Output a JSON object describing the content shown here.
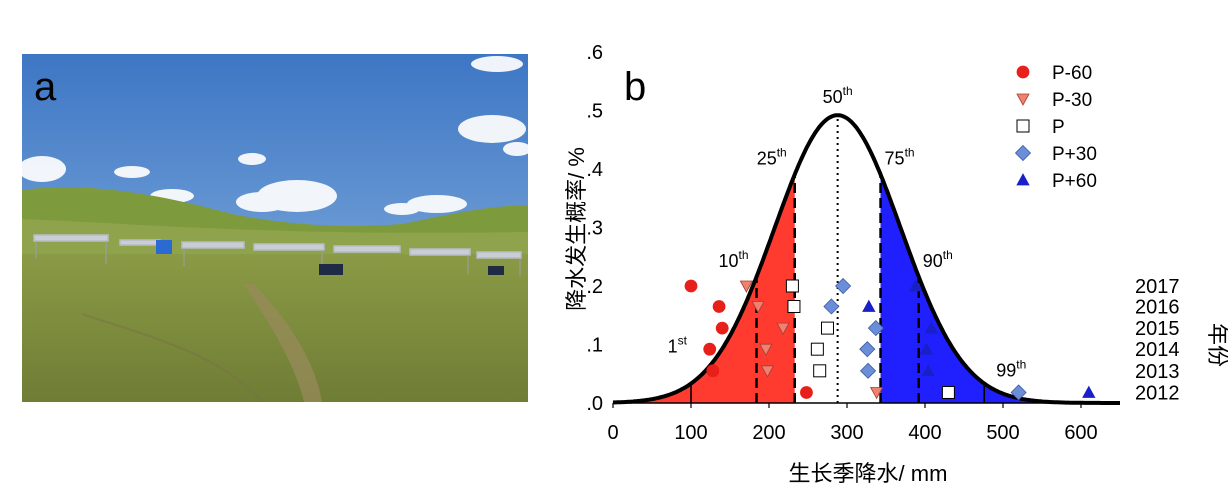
{
  "panel_a": {
    "label": "a"
  },
  "panel_b": {
    "label": "b"
  },
  "chart_data": {
    "type": "scatter",
    "xlabel": "生长季降水/ mm",
    "ylabel": "降水发生概率/ %",
    "y2label": "年份",
    "xlim": [
      0,
      650
    ],
    "ylim": [
      0,
      0.6
    ],
    "xticks": [
      0,
      100,
      200,
      300,
      400,
      500,
      600
    ],
    "yticks": [
      0.0,
      0.1,
      0.2,
      0.3,
      0.4,
      0.5,
      0.6
    ],
    "ytick_labels": [
      ".0",
      ".1",
      ".2",
      ".3",
      ".4",
      ".5",
      ".6"
    ],
    "y2_categories": [
      "2017",
      "2016",
      "2015",
      "2014",
      "2013",
      "2012"
    ],
    "y2_values": [
      0.2,
      0.165,
      0.128,
      0.092,
      0.055,
      0.018
    ],
    "distribution": {
      "kind": "normal",
      "mean": 288,
      "sd": 81
    },
    "shading": [
      {
        "from": 0,
        "to": 233,
        "color": "#ff3b30"
      },
      {
        "from": 343,
        "to": 650,
        "color": "#2020ff"
      }
    ],
    "percentiles": [
      {
        "p": "1",
        "suffix": "st",
        "x": 100,
        "style": "solid"
      },
      {
        "p": "10",
        "suffix": "th",
        "x": 184,
        "style": "dashed"
      },
      {
        "p": "25",
        "suffix": "th",
        "x": 233,
        "style": "dashed"
      },
      {
        "p": "50",
        "suffix": "th",
        "x": 288,
        "style": "dotted"
      },
      {
        "p": "75",
        "suffix": "th",
        "x": 343,
        "style": "dashed"
      },
      {
        "p": "90",
        "suffix": "th",
        "x": 392,
        "style": "dashed"
      },
      {
        "p": "99",
        "suffix": "th",
        "x": 476,
        "style": "solid"
      }
    ],
    "series": [
      {
        "name": "P-60",
        "marker": "circle",
        "color": "#e8201a",
        "points": [
          [
            100,
            0.2
          ],
          [
            136,
            0.165
          ],
          [
            140,
            0.128
          ],
          [
            124,
            0.092
          ],
          [
            128,
            0.055
          ],
          [
            248,
            0.018
          ]
        ]
      },
      {
        "name": "P-30",
        "marker": "triangle-down",
        "color": "#f08070",
        "points": [
          [
            171,
            0.2
          ],
          [
            186,
            0.165
          ],
          [
            218,
            0.128
          ],
          [
            196,
            0.092
          ],
          [
            198,
            0.055
          ],
          [
            338,
            0.018
          ]
        ]
      },
      {
        "name": "P",
        "marker": "square",
        "color": "#ffffff",
        "points": [
          [
            230,
            0.2
          ],
          [
            232,
            0.165
          ],
          [
            275,
            0.128
          ],
          [
            262,
            0.092
          ],
          [
            265,
            0.055
          ],
          [
            430,
            0.018
          ]
        ]
      },
      {
        "name": "P+30",
        "marker": "diamond",
        "color": "#6a8fd8",
        "points": [
          [
            295,
            0.2
          ],
          [
            280,
            0.165
          ],
          [
            337,
            0.128
          ],
          [
            326,
            0.092
          ],
          [
            327,
            0.055
          ],
          [
            520,
            0.018
          ]
        ]
      },
      {
        "name": "P+60",
        "marker": "triangle-up",
        "color": "#1a20c8",
        "points": [
          [
            388,
            0.2
          ],
          [
            328,
            0.165
          ],
          [
            408,
            0.128
          ],
          [
            402,
            0.092
          ],
          [
            404,
            0.055
          ],
          [
            610,
            0.018
          ]
        ]
      }
    ]
  }
}
